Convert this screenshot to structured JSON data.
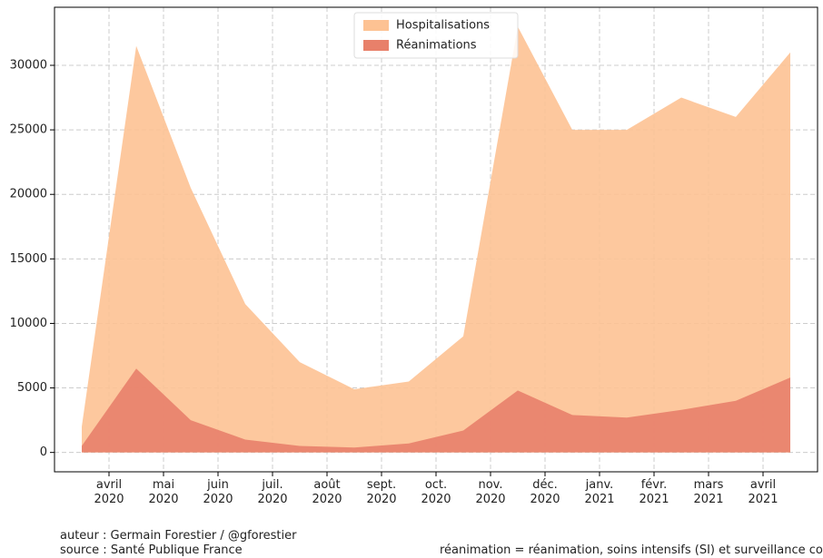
{
  "chart_data": {
    "type": "area",
    "x": [
      "2020-03",
      "2020-04",
      "2020-05",
      "2020-06",
      "2020-07",
      "2020-08",
      "2020-09",
      "2020-10",
      "2020-11",
      "2020-12",
      "2021-01",
      "2021-02",
      "2021-03",
      "2021-04"
    ],
    "series": [
      {
        "name": "Hospitalisations",
        "color": "#fdc293",
        "values": [
          2000,
          31500,
          20500,
          11500,
          7000,
          4900,
          5500,
          9000,
          33000,
          25000,
          25000,
          27500,
          26000,
          31000
        ]
      },
      {
        "name": "Réanimations",
        "color": "#e8806a",
        "values": [
          500,
          6500,
          2500,
          1000,
          500,
          380,
          700,
          1700,
          4800,
          2900,
          2700,
          3300,
          4000,
          5800
        ]
      }
    ],
    "xlim": [
      "2020-03",
      "2021-05"
    ],
    "xticks": [
      {
        "value": "2020-04",
        "label": "avril\n2020"
      },
      {
        "value": "2020-05",
        "label": "mai\n2020"
      },
      {
        "value": "2020-06",
        "label": "juin\n2020"
      },
      {
        "value": "2020-07",
        "label": "juil.\n2020"
      },
      {
        "value": "2020-08",
        "label": "août\n2020"
      },
      {
        "value": "2020-09",
        "label": "sept.\n2020"
      },
      {
        "value": "2020-10",
        "label": "oct.\n2020"
      },
      {
        "value": "2020-11",
        "label": "nov.\n2020"
      },
      {
        "value": "2020-12",
        "label": "déc.\n2020"
      },
      {
        "value": "2021-01",
        "label": "janv.\n2021"
      },
      {
        "value": "2021-02",
        "label": "févr.\n2021"
      },
      {
        "value": "2021-03",
        "label": "mars\n2021"
      },
      {
        "value": "2021-04",
        "label": "avril\n2021"
      }
    ],
    "ylim": [
      -1500,
      34500
    ],
    "yticks": [
      0,
      5000,
      10000,
      15000,
      20000,
      25000,
      30000
    ],
    "grid": true,
    "legend": "upper center",
    "notes": [
      "auteur : Germain Forestier / @gforestier",
      "source : Santé Publique France",
      "réanimation = réanimation, soins intensifs (SI) et surveillance continue (SC)"
    ]
  }
}
